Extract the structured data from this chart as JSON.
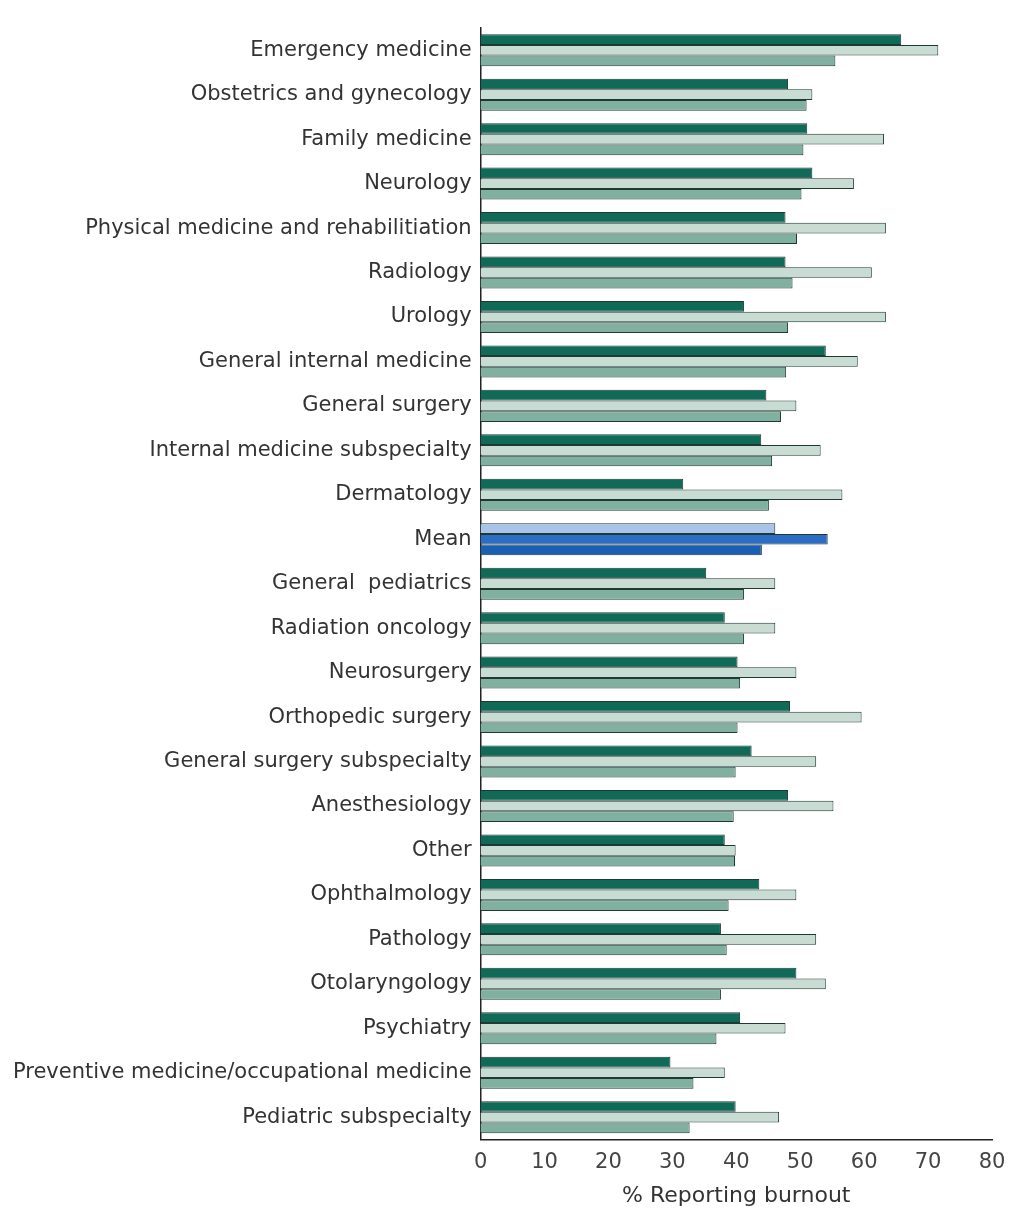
{
  "chart_data": {
    "type": "bar",
    "orientation": "horizontal",
    "xlabel": "% Reporting burnout",
    "categories": [
      "Emergency medicine",
      "Obstetrics and gynecology",
      "Family medicine",
      "Neurology",
      "Physical medicine and rehabilitiation",
      "Radiology",
      "Urology",
      "General internal medicine",
      "General surgery",
      "Internal medicine subspecialty",
      "Dermatology",
      "Mean",
      "General  pediatrics",
      "Radiation oncology",
      "Neurosurgery",
      "Orthopedic surgery",
      "General surgery subspecialty",
      "Anesthesiology",
      "Other",
      "Ophthalmology",
      "Pathology",
      "Otolaryngology",
      "Psychiatry",
      "Preventive medicine/occupational medicine",
      "Pediatric subspecialty"
    ],
    "series": [
      {
        "colors": [
          "#0f6b57",
          "#0f6b57",
          "#0f6b57",
          "#0f6b57",
          "#0f6b57",
          "#0f6b57",
          "#0f6b57",
          "#0f6b57",
          "#0f6b57",
          "#0f6b57",
          "#0f6b57",
          "#a9c4e8",
          "#0f6b57",
          "#0f6b57",
          "#0f6b57",
          "#0f6b57",
          "#0f6b57",
          "#0f6b57",
          "#0f6b57",
          "#0f6b57",
          "#0f6b57",
          "#0f6b57",
          "#0f6b57",
          "#0f6b57",
          "#0f6b57"
        ],
        "values": [
          65.8,
          48.1,
          51.1,
          51.9,
          47.7,
          47.7,
          41.2,
          54.0,
          44.7,
          43.9,
          31.7,
          46.1,
          35.3,
          38.2,
          40.2,
          48.4,
          42.4,
          48.1,
          38.2,
          43.6,
          37.6,
          49.4,
          40.6,
          29.7,
          39.9
        ]
      },
      {
        "colors": [
          "#c8dcd4",
          "#c8dcd4",
          "#c8dcd4",
          "#c8dcd4",
          "#c8dcd4",
          "#c8dcd4",
          "#c8dcd4",
          "#c8dcd4",
          "#c8dcd4",
          "#c8dcd4",
          "#c8dcd4",
          "#2b6cc4",
          "#c8dcd4",
          "#c8dcd4",
          "#c8dcd4",
          "#c8dcd4",
          "#c8dcd4",
          "#c8dcd4",
          "#c8dcd4",
          "#c8dcd4",
          "#c8dcd4",
          "#c8dcd4",
          "#c8dcd4",
          "#c8dcd4",
          "#c8dcd4"
        ],
        "values": [
          71.6,
          51.9,
          63.1,
          58.4,
          63.4,
          61.2,
          63.4,
          59.0,
          49.4,
          53.2,
          56.6,
          54.3,
          46.1,
          46.1,
          49.4,
          59.6,
          52.5,
          55.2,
          39.9,
          49.4,
          52.5,
          54.0,
          47.7,
          38.2,
          46.7
        ]
      },
      {
        "colors": [
          "#7fb0a0",
          "#7fb0a0",
          "#7fb0a0",
          "#7fb0a0",
          "#7fb0a0",
          "#7fb0a0",
          "#7fb0a0",
          "#7fb0a0",
          "#7fb0a0",
          "#7fb0a0",
          "#7fb0a0",
          "#1a5fb4",
          "#7fb0a0",
          "#7fb0a0",
          "#7fb0a0",
          "#7fb0a0",
          "#7fb0a0",
          "#7fb0a0",
          "#7fb0a0",
          "#7fb0a0",
          "#7fb0a0",
          "#7fb0a0",
          "#7fb0a0",
          "#7fb0a0",
          "#7fb0a0"
        ],
        "values": [
          55.5,
          51.0,
          50.5,
          50.2,
          49.5,
          48.8,
          48.1,
          47.8,
          47.0,
          45.6,
          45.1,
          44.0,
          41.2,
          41.2,
          40.6,
          40.2,
          39.9,
          39.6,
          39.8,
          38.8,
          38.5,
          37.6,
          36.9,
          33.3,
          32.7
        ]
      }
    ],
    "xlim": [
      0,
      80
    ],
    "xticks": [
      0,
      10,
      20,
      30,
      40,
      50,
      60,
      70,
      80
    ]
  }
}
